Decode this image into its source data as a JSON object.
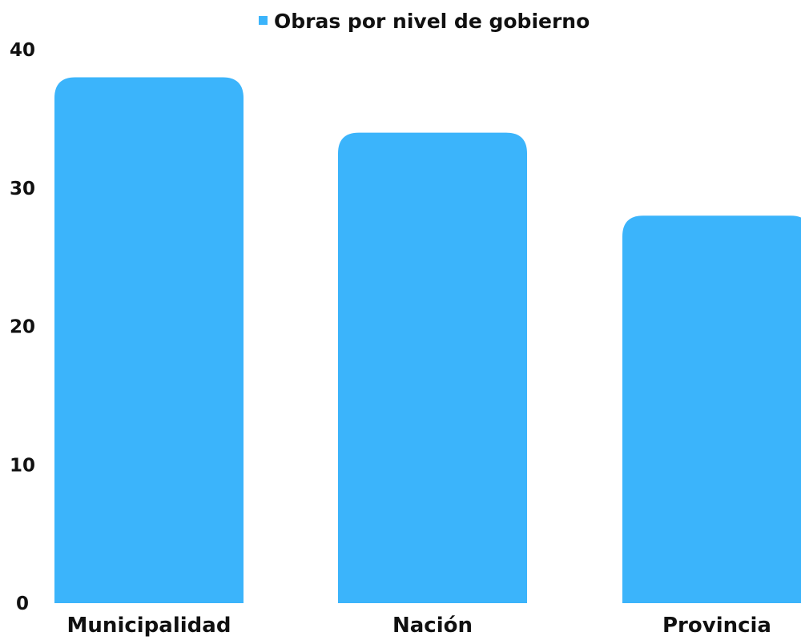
{
  "chart_data": {
    "type": "bar",
    "categories": [
      "Municipalidad",
      "Nación",
      "Provincia"
    ],
    "series": [
      {
        "name": "Obras por nivel de gobierno",
        "values": [
          38,
          34,
          28
        ],
        "color": "#3bb4fb"
      }
    ],
    "title": "",
    "xlabel": "",
    "ylabel": "",
    "ylim": [
      0,
      40
    ],
    "yticks": [
      0,
      10,
      20,
      30,
      40
    ],
    "grid": false,
    "legend_position": "top-center",
    "bar_style": "rounded-top"
  }
}
